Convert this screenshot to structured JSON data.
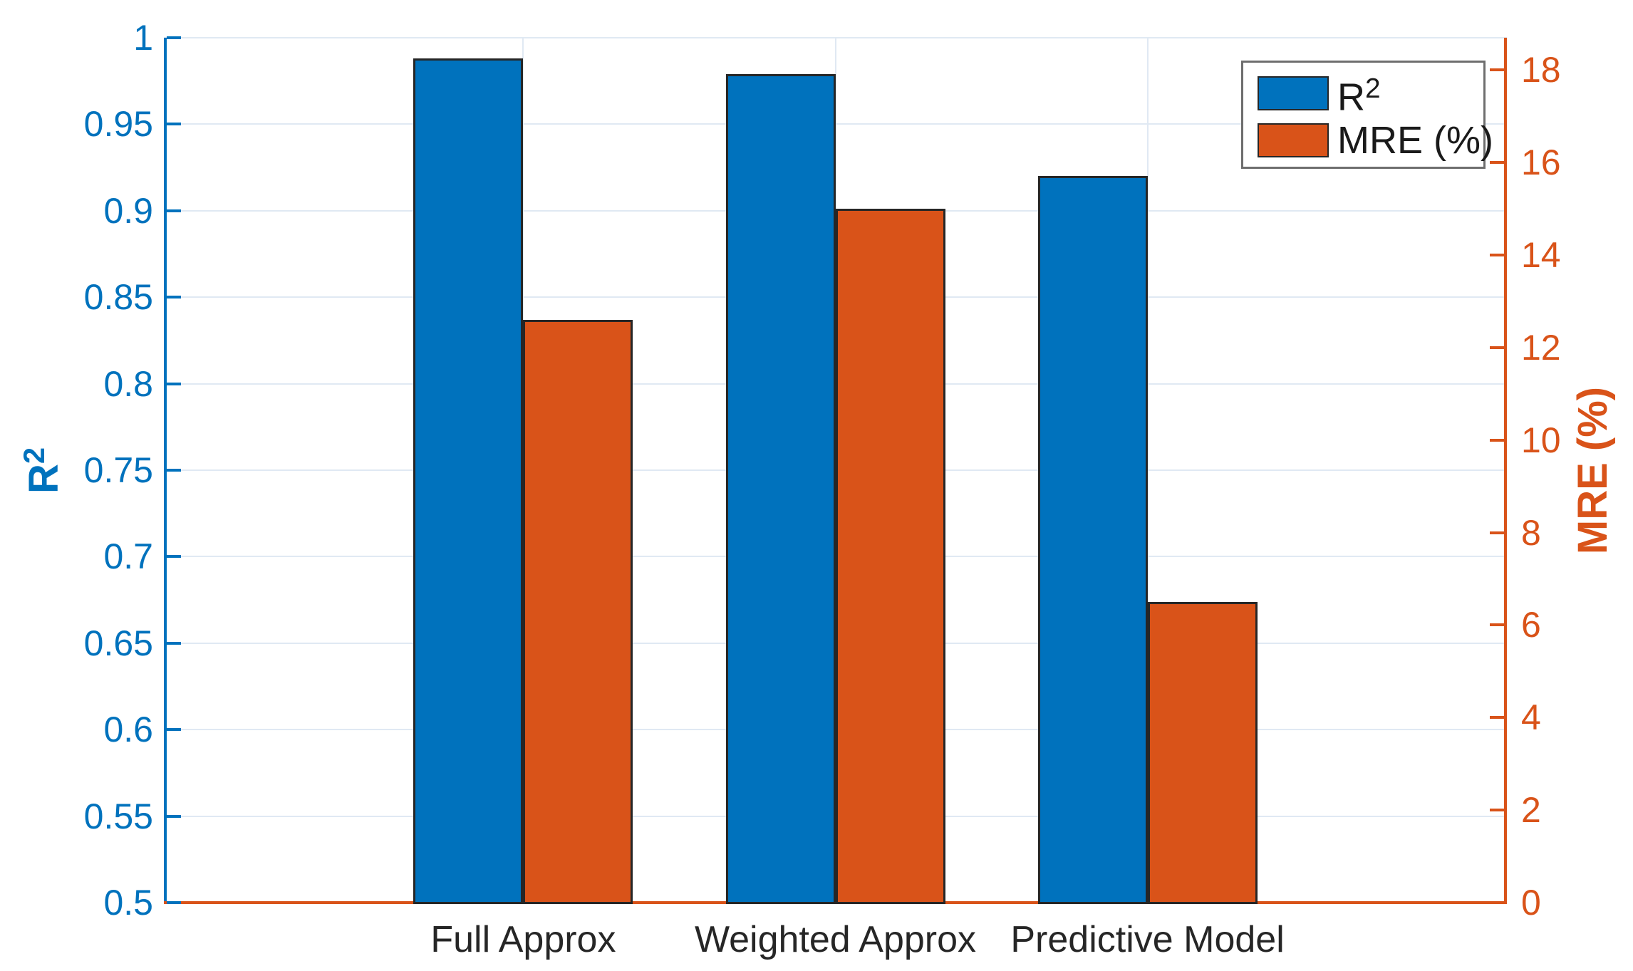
{
  "colors": {
    "blue": "#0072BD",
    "orange": "#D95319",
    "grid": "#e0e9f3",
    "bar_edge": "#262626",
    "xlabel_color": "#262626",
    "legend_border": "#6e6e6e"
  },
  "axes": {
    "left": {
      "label_base": "R",
      "label_sup": "2",
      "ticks": [
        "0.5",
        "0.55",
        "0.6",
        "0.65",
        "0.7",
        "0.75",
        "0.8",
        "0.85",
        "0.9",
        "0.95",
        "1"
      ]
    },
    "right": {
      "label": "MRE (%)",
      "ticks": [
        "0",
        "2",
        "4",
        "6",
        "8",
        "10",
        "12",
        "14",
        "16",
        "18"
      ]
    }
  },
  "legend": {
    "items": [
      {
        "base": "R",
        "sup": "2"
      },
      {
        "base": "MRE (%)",
        "sup": ""
      }
    ]
  },
  "chart_data": {
    "type": "bar",
    "categories": [
      "Full Approx",
      "Weighted Approx",
      "Predictive Model"
    ],
    "series": [
      {
        "name": "R2",
        "axis": "left",
        "color_key": "blue",
        "values": [
          0.988,
          0.979,
          0.92
        ]
      },
      {
        "name": "MRE (%)",
        "axis": "right",
        "color_key": "orange",
        "values": [
          12.6,
          15.0,
          6.5
        ]
      }
    ],
    "left_ylim": [
      0.5,
      1.0
    ],
    "left_tick_step": 0.05,
    "right_ylim": [
      0,
      18.7
    ],
    "right_tick_step": 2,
    "grid": true,
    "legend_position": "top-right"
  }
}
